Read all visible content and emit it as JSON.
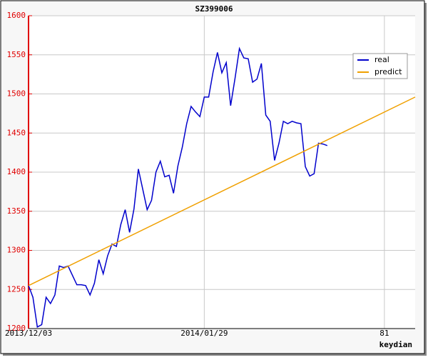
{
  "chart_data": {
    "type": "line",
    "title": "SZ399006",
    "x_label": "keydian",
    "xlim": [
      0,
      88
    ],
    "xticks": [
      {
        "value": 0,
        "label": "2013/12/03"
      },
      {
        "value": 40,
        "label": "2014/01/29"
      },
      81
    ],
    "ylim": [
      1200,
      1600
    ],
    "yticks": [
      1200,
      1250,
      1300,
      1350,
      1400,
      1450,
      1500,
      1550,
      1600
    ],
    "grid": true,
    "legend": "upper right",
    "series": [
      {
        "name": "real",
        "color": "#0000cc",
        "values": [
          1255,
          1240,
          1202,
          1205,
          1240,
          1232,
          1243,
          1280,
          1278,
          1280,
          1268,
          1256,
          1256,
          1255,
          1243,
          1258,
          1288,
          1270,
          1293,
          1308,
          1305,
          1333,
          1352,
          1323,
          1353,
          1404,
          1378,
          1352,
          1364,
          1400,
          1414,
          1394,
          1396,
          1373,
          1408,
          1432,
          1462,
          1484,
          1477,
          1471,
          1496,
          1496,
          1528,
          1553,
          1527,
          1540,
          1485,
          1520,
          1558,
          1546,
          1545,
          1515,
          1519,
          1539,
          1473,
          1465,
          1415,
          1437,
          1465,
          1462,
          1465,
          1463,
          1462,
          1407,
          1395,
          1398,
          1437,
          1436,
          1434
        ]
      },
      {
        "name": "predict",
        "color": "#f0a000",
        "x": [
          0,
          88
        ],
        "values": [
          1255,
          1496
        ]
      }
    ]
  }
}
